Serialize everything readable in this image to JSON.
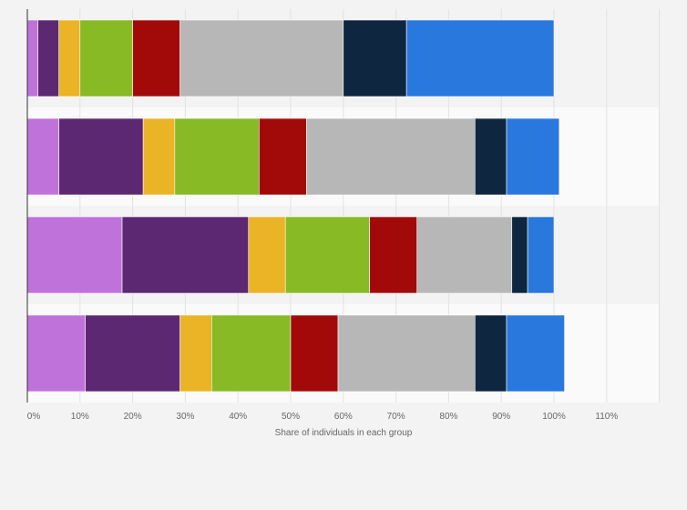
{
  "chart_data": {
    "type": "bar",
    "orientation": "horizontal",
    "stacked": true,
    "xlabel": "Share of individuals in each group",
    "xlim": [
      0,
      120
    ],
    "ticks": [
      "0%",
      "10%",
      "20%",
      "30%",
      "40%",
      "50%",
      "60%",
      "70%",
      "80%",
      "90%",
      "100%",
      "110%"
    ],
    "tick_values": [
      0,
      10,
      20,
      30,
      40,
      50,
      60,
      70,
      80,
      90,
      100,
      110
    ],
    "grid": true,
    "legend": "none",
    "categories": [
      "",
      "",
      "",
      ""
    ],
    "series": [
      {
        "color": "#c072db",
        "values": [
          2,
          6,
          18,
          11
        ]
      },
      {
        "color": "#5c2872",
        "values": [
          4,
          16,
          24,
          18
        ]
      },
      {
        "color": "#ebb326",
        "values": [
          4,
          6,
          7,
          6
        ]
      },
      {
        "color": "#87ba25",
        "values": [
          10,
          16,
          16,
          15
        ]
      },
      {
        "color": "#a20a0a",
        "values": [
          9,
          9,
          9,
          9
        ]
      },
      {
        "color": "#b7b7b7",
        "values": [
          31,
          32,
          18,
          26
        ]
      },
      {
        "color": "#0e2640",
        "values": [
          12,
          6,
          3,
          6
        ]
      },
      {
        "color": "#2878de",
        "values": [
          28,
          10,
          5,
          11
        ]
      }
    ]
  }
}
